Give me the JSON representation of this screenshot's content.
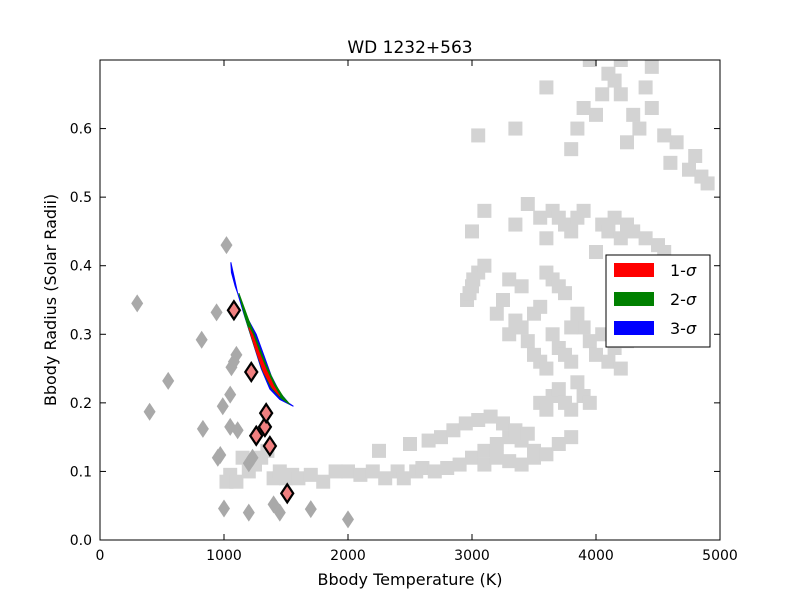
{
  "chart_data": {
    "type": "scatter",
    "title": "WD 1232+563",
    "xlabel": "Bbody Temperature (K)",
    "ylabel": "Bbody Radius (Solar Radii)",
    "xlim": [
      0,
      5000
    ],
    "ylim": [
      0,
      0.7
    ],
    "xticks": [
      "0",
      "1000",
      "2000",
      "3000",
      "4000",
      "5000"
    ],
    "yticks": [
      "0.0",
      "0.1",
      "0.2",
      "0.3",
      "0.4",
      "0.5",
      "0.6"
    ],
    "grid": false,
    "legend_position": "right",
    "legend": [
      {
        "label_prefix": "1-",
        "label_symbol": "σ",
        "color": "#ff0000"
      },
      {
        "label_prefix": "2-",
        "label_symbol": "σ",
        "color": "#008000"
      },
      {
        "label_prefix": "3-",
        "label_symbol": "σ",
        "color": "#0000ff"
      }
    ],
    "colors": {
      "squares": "#d3d3d3",
      "gray_diamonds": "#a9a9a9",
      "red_diamonds": "#f08080",
      "edge": "#000000"
    },
    "series": [
      {
        "marker": "square",
        "points": [
          [
            1020,
            0.085
          ],
          [
            1050,
            0.095
          ],
          [
            1100,
            0.085
          ],
          [
            1150,
            0.12
          ],
          [
            1200,
            0.1
          ],
          [
            1250,
            0.11
          ],
          [
            1300,
            0.12
          ],
          [
            1350,
            0.13
          ],
          [
            1400,
            0.09
          ],
          [
            1450,
            0.1
          ],
          [
            1500,
            0.09
          ],
          [
            1550,
            0.095
          ],
          [
            1600,
            0.09
          ],
          [
            1700,
            0.095
          ],
          [
            1800,
            0.085
          ],
          [
            1900,
            0.1
          ],
          [
            2000,
            0.1
          ],
          [
            2100,
            0.095
          ],
          [
            2200,
            0.1
          ],
          [
            2250,
            0.13
          ],
          [
            2300,
            0.09
          ],
          [
            2400,
            0.1
          ],
          [
            2450,
            0.09
          ],
          [
            2500,
            0.14
          ],
          [
            2550,
            0.1
          ],
          [
            2600,
            0.105
          ],
          [
            2650,
            0.145
          ],
          [
            2700,
            0.1
          ],
          [
            2750,
            0.15
          ],
          [
            2800,
            0.105
          ],
          [
            2850,
            0.16
          ],
          [
            2900,
            0.11
          ],
          [
            2950,
            0.17
          ],
          [
            3000,
            0.12
          ],
          [
            3050,
            0.175
          ],
          [
            3100,
            0.13
          ],
          [
            3150,
            0.18
          ],
          [
            3200,
            0.14
          ],
          [
            3250,
            0.17
          ],
          [
            3300,
            0.15
          ],
          [
            3350,
            0.16
          ],
          [
            3400,
            0.145
          ],
          [
            3450,
            0.155
          ],
          [
            3500,
            0.13
          ],
          [
            3550,
            0.2
          ],
          [
            3600,
            0.19
          ],
          [
            3650,
            0.21
          ],
          [
            3700,
            0.22
          ],
          [
            3750,
            0.2
          ],
          [
            3800,
            0.19
          ],
          [
            3850,
            0.23
          ],
          [
            3900,
            0.21
          ],
          [
            3950,
            0.2
          ],
          [
            3100,
            0.11
          ],
          [
            3200,
            0.12
          ],
          [
            3300,
            0.115
          ],
          [
            3400,
            0.11
          ],
          [
            3500,
            0.12
          ],
          [
            3600,
            0.125
          ],
          [
            3700,
            0.14
          ],
          [
            3800,
            0.15
          ],
          [
            2960,
            0.35
          ],
          [
            2980,
            0.36
          ],
          [
            3000,
            0.37
          ],
          [
            3010,
            0.38
          ],
          [
            3050,
            0.39
          ],
          [
            3100,
            0.4
          ],
          [
            3200,
            0.33
          ],
          [
            3250,
            0.35
          ],
          [
            3300,
            0.3
          ],
          [
            3350,
            0.32
          ],
          [
            3400,
            0.31
          ],
          [
            3450,
            0.29
          ],
          [
            3500,
            0.27
          ],
          [
            3550,
            0.26
          ],
          [
            3600,
            0.25
          ],
          [
            3650,
            0.3
          ],
          [
            3700,
            0.28
          ],
          [
            3750,
            0.27
          ],
          [
            3800,
            0.26
          ],
          [
            3850,
            0.33
          ],
          [
            3900,
            0.31
          ],
          [
            3950,
            0.29
          ],
          [
            4000,
            0.27
          ],
          [
            4050,
            0.3
          ],
          [
            4100,
            0.26
          ],
          [
            4150,
            0.28
          ],
          [
            4200,
            0.25
          ],
          [
            4250,
            0.29
          ],
          [
            3300,
            0.38
          ],
          [
            3400,
            0.37
          ],
          [
            3500,
            0.33
          ],
          [
            3550,
            0.34
          ],
          [
            3600,
            0.39
          ],
          [
            3650,
            0.38
          ],
          [
            3700,
            0.37
          ],
          [
            3750,
            0.36
          ],
          [
            3800,
            0.31
          ],
          [
            3000,
            0.45
          ],
          [
            3100,
            0.48
          ],
          [
            3350,
            0.46
          ],
          [
            3450,
            0.49
          ],
          [
            3550,
            0.47
          ],
          [
            3600,
            0.44
          ],
          [
            3650,
            0.48
          ],
          [
            3700,
            0.47
          ],
          [
            3750,
            0.46
          ],
          [
            3800,
            0.45
          ],
          [
            3850,
            0.47
          ],
          [
            3900,
            0.48
          ],
          [
            4000,
            0.42
          ],
          [
            4050,
            0.46
          ],
          [
            4100,
            0.45
          ],
          [
            4150,
            0.47
          ],
          [
            4200,
            0.44
          ],
          [
            4250,
            0.46
          ],
          [
            4300,
            0.45
          ],
          [
            4400,
            0.44
          ],
          [
            4500,
            0.43
          ],
          [
            4550,
            0.42
          ],
          [
            3050,
            0.59
          ],
          [
            3350,
            0.6
          ],
          [
            3600,
            0.66
          ],
          [
            3800,
            0.57
          ],
          [
            3850,
            0.6
          ],
          [
            3900,
            0.63
          ],
          [
            4000,
            0.62
          ],
          [
            4050,
            0.65
          ],
          [
            4100,
            0.68
          ],
          [
            4150,
            0.67
          ],
          [
            4200,
            0.65
          ],
          [
            4250,
            0.58
          ],
          [
            4300,
            0.62
          ],
          [
            4350,
            0.6
          ],
          [
            4400,
            0.66
          ],
          [
            4450,
            0.69
          ],
          [
            3950,
            0.7
          ],
          [
            4200,
            0.7
          ],
          [
            4450,
            0.63
          ],
          [
            4600,
            0.55
          ],
          [
            4650,
            0.58
          ],
          [
            4750,
            0.54
          ],
          [
            4800,
            0.56
          ],
          [
            4850,
            0.53
          ],
          [
            4900,
            0.52
          ],
          [
            4550,
            0.59
          ]
        ]
      },
      {
        "marker": "diamond",
        "points": [
          [
            300,
            0.345
          ],
          [
            400,
            0.187
          ],
          [
            550,
            0.232
          ],
          [
            820,
            0.292
          ],
          [
            830,
            0.162
          ],
          [
            940,
            0.332
          ],
          [
            950,
            0.12
          ],
          [
            970,
            0.124
          ],
          [
            990,
            0.195
          ],
          [
            1000,
            0.046
          ],
          [
            1020,
            0.43
          ],
          [
            1050,
            0.165
          ],
          [
            1050,
            0.212
          ],
          [
            1060,
            0.252
          ],
          [
            1080,
            0.26
          ],
          [
            1100,
            0.27
          ],
          [
            1110,
            0.16
          ],
          [
            1200,
            0.04
          ],
          [
            1200,
            0.112
          ],
          [
            1230,
            0.12
          ],
          [
            1400,
            0.052
          ],
          [
            1450,
            0.04
          ],
          [
            1700,
            0.045
          ],
          [
            2000,
            0.03
          ]
        ]
      },
      {
        "marker": "diamond_highlight",
        "points": [
          [
            1080,
            0.335
          ],
          [
            1220,
            0.245
          ],
          [
            1260,
            0.152
          ],
          [
            1330,
            0.165
          ],
          [
            1340,
            0.185
          ],
          [
            1370,
            0.137
          ],
          [
            1510,
            0.068
          ]
        ]
      }
    ],
    "confidence_region": {
      "three_sigma": [
        [
          1055,
          0.405
        ],
        [
          1080,
          0.385
        ],
        [
          1110,
          0.36
        ],
        [
          1160,
          0.33
        ],
        [
          1230,
          0.29
        ],
        [
          1300,
          0.25
        ],
        [
          1370,
          0.22
        ],
        [
          1450,
          0.205
        ],
        [
          1560,
          0.195
        ],
        [
          1520,
          0.2
        ],
        [
          1450,
          0.215
        ],
        [
          1380,
          0.24
        ],
        [
          1320,
          0.27
        ],
        [
          1260,
          0.3
        ],
        [
          1200,
          0.32
        ],
        [
          1140,
          0.345
        ],
        [
          1090,
          0.37
        ],
        [
          1060,
          0.39
        ]
      ],
      "two_sigma": [
        [
          1120,
          0.36
        ],
        [
          1170,
          0.325
        ],
        [
          1240,
          0.285
        ],
        [
          1310,
          0.248
        ],
        [
          1380,
          0.222
        ],
        [
          1460,
          0.207
        ],
        [
          1530,
          0.198
        ],
        [
          1480,
          0.208
        ],
        [
          1410,
          0.228
        ],
        [
          1340,
          0.255
        ],
        [
          1270,
          0.288
        ],
        [
          1200,
          0.32
        ],
        [
          1150,
          0.345
        ]
      ],
      "one_sigma": [
        [
          1200,
          0.31
        ],
        [
          1260,
          0.275
        ],
        [
          1320,
          0.245
        ],
        [
          1390,
          0.222
        ],
        [
          1450,
          0.21
        ],
        [
          1400,
          0.225
        ],
        [
          1340,
          0.248
        ],
        [
          1280,
          0.275
        ],
        [
          1230,
          0.3
        ]
      ]
    }
  }
}
